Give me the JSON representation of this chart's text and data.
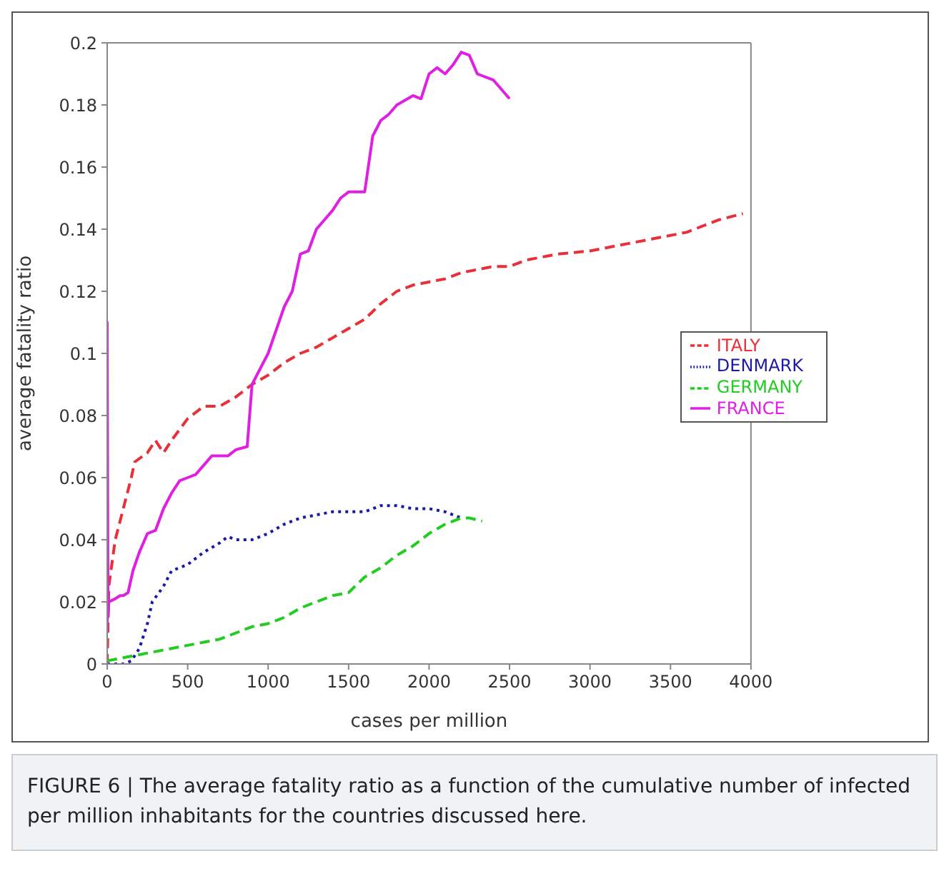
{
  "chart_data": {
    "type": "line",
    "xlabel": "cases per million",
    "ylabel": "average fatality ratio",
    "annotations": [
      "FIGURE 6 | The average fatality ratio as a function of the cumulative number of infected per million inhabitants for the countries discussed here."
    ],
    "xlim": [
      0,
      4000
    ],
    "xticks": [
      0,
      500,
      1000,
      1500,
      2000,
      2500,
      3000,
      3500,
      4000
    ],
    "ylim": [
      0,
      0.2
    ],
    "yticks": [
      0,
      0.02,
      0.04,
      0.06,
      0.08,
      0.1,
      0.12,
      0.14,
      0.16,
      0.18,
      0.2
    ],
    "legend": "right",
    "marker": "none",
    "series": [
      {
        "name": "ITALY",
        "color": "#e8303a",
        "line_style": "dashed",
        "x": [
          0,
          10,
          50,
          100,
          150,
          170,
          250,
          300,
          350,
          400,
          500,
          600,
          700,
          800,
          900,
          1000,
          1100,
          1200,
          1300,
          1400,
          1500,
          1600,
          1700,
          1800,
          1900,
          2000,
          2100,
          2200,
          2400,
          2500,
          2600,
          2800,
          3000,
          3200,
          3400,
          3600,
          3800,
          3950
        ],
        "values": [
          0,
          0.025,
          0.04,
          0.05,
          0.06,
          0.065,
          0.068,
          0.072,
          0.068,
          0.072,
          0.079,
          0.083,
          0.083,
          0.086,
          0.09,
          0.093,
          0.097,
          0.1,
          0.102,
          0.105,
          0.108,
          0.111,
          0.116,
          0.12,
          0.122,
          0.123,
          0.124,
          0.126,
          0.128,
          0.128,
          0.13,
          0.132,
          0.133,
          0.135,
          0.137,
          0.139,
          0.143,
          0.145
        ]
      },
      {
        "name": "DENMARK",
        "color": "#1a1aa6",
        "line_style": "dotted",
        "x": [
          0,
          50,
          100,
          150,
          200,
          250,
          280,
          350,
          400,
          500,
          600,
          700,
          750,
          800,
          900,
          1000,
          1100,
          1200,
          1300,
          1400,
          1500,
          1600,
          1700,
          1800,
          1900,
          2000,
          2100,
          2200
        ],
        "values": [
          0,
          0,
          0,
          0.001,
          0.005,
          0.013,
          0.02,
          0.025,
          0.03,
          0.032,
          0.036,
          0.039,
          0.041,
          0.04,
          0.04,
          0.042,
          0.045,
          0.047,
          0.048,
          0.049,
          0.049,
          0.049,
          0.051,
          0.051,
          0.05,
          0.05,
          0.049,
          0.047
        ]
      },
      {
        "name": "GERMANY",
        "color": "#22cc22",
        "line_style": "dashed",
        "x": [
          0,
          100,
          200,
          300,
          400,
          500,
          600,
          700,
          800,
          900,
          1000,
          1100,
          1200,
          1300,
          1400,
          1500,
          1600,
          1700,
          1800,
          1900,
          2000,
          2100,
          2200,
          2250,
          2330
        ],
        "values": [
          0.001,
          0.002,
          0.003,
          0.004,
          0.005,
          0.006,
          0.007,
          0.008,
          0.01,
          0.012,
          0.013,
          0.015,
          0.018,
          0.02,
          0.022,
          0.023,
          0.028,
          0.031,
          0.035,
          0.038,
          0.042,
          0.045,
          0.047,
          0.047,
          0.046
        ]
      },
      {
        "name": "FRANCE",
        "color": "#e020e0",
        "line_style": "solid",
        "x": [
          0,
          0,
          5,
          10,
          50,
          80,
          100,
          130,
          160,
          200,
          250,
          300,
          350,
          400,
          450,
          500,
          550,
          600,
          650,
          750,
          800,
          870,
          900,
          1000,
          1100,
          1150,
          1200,
          1250,
          1300,
          1400,
          1450,
          1500,
          1600,
          1650,
          1700,
          1750,
          1800,
          1900,
          1950,
          2000,
          2050,
          2100,
          2150,
          2200,
          2250,
          2300,
          2400,
          2500
        ],
        "values": [
          0.01,
          0.11,
          0.015,
          0.02,
          0.021,
          0.022,
          0.022,
          0.023,
          0.03,
          0.036,
          0.042,
          0.043,
          0.05,
          0.055,
          0.059,
          0.06,
          0.061,
          0.064,
          0.067,
          0.067,
          0.069,
          0.07,
          0.09,
          0.1,
          0.115,
          0.12,
          0.132,
          0.133,
          0.14,
          0.146,
          0.15,
          0.152,
          0.152,
          0.17,
          0.175,
          0.177,
          0.18,
          0.183,
          0.182,
          0.19,
          0.192,
          0.19,
          0.193,
          0.197,
          0.196,
          0.19,
          0.188,
          0.182
        ]
      }
    ]
  }
}
